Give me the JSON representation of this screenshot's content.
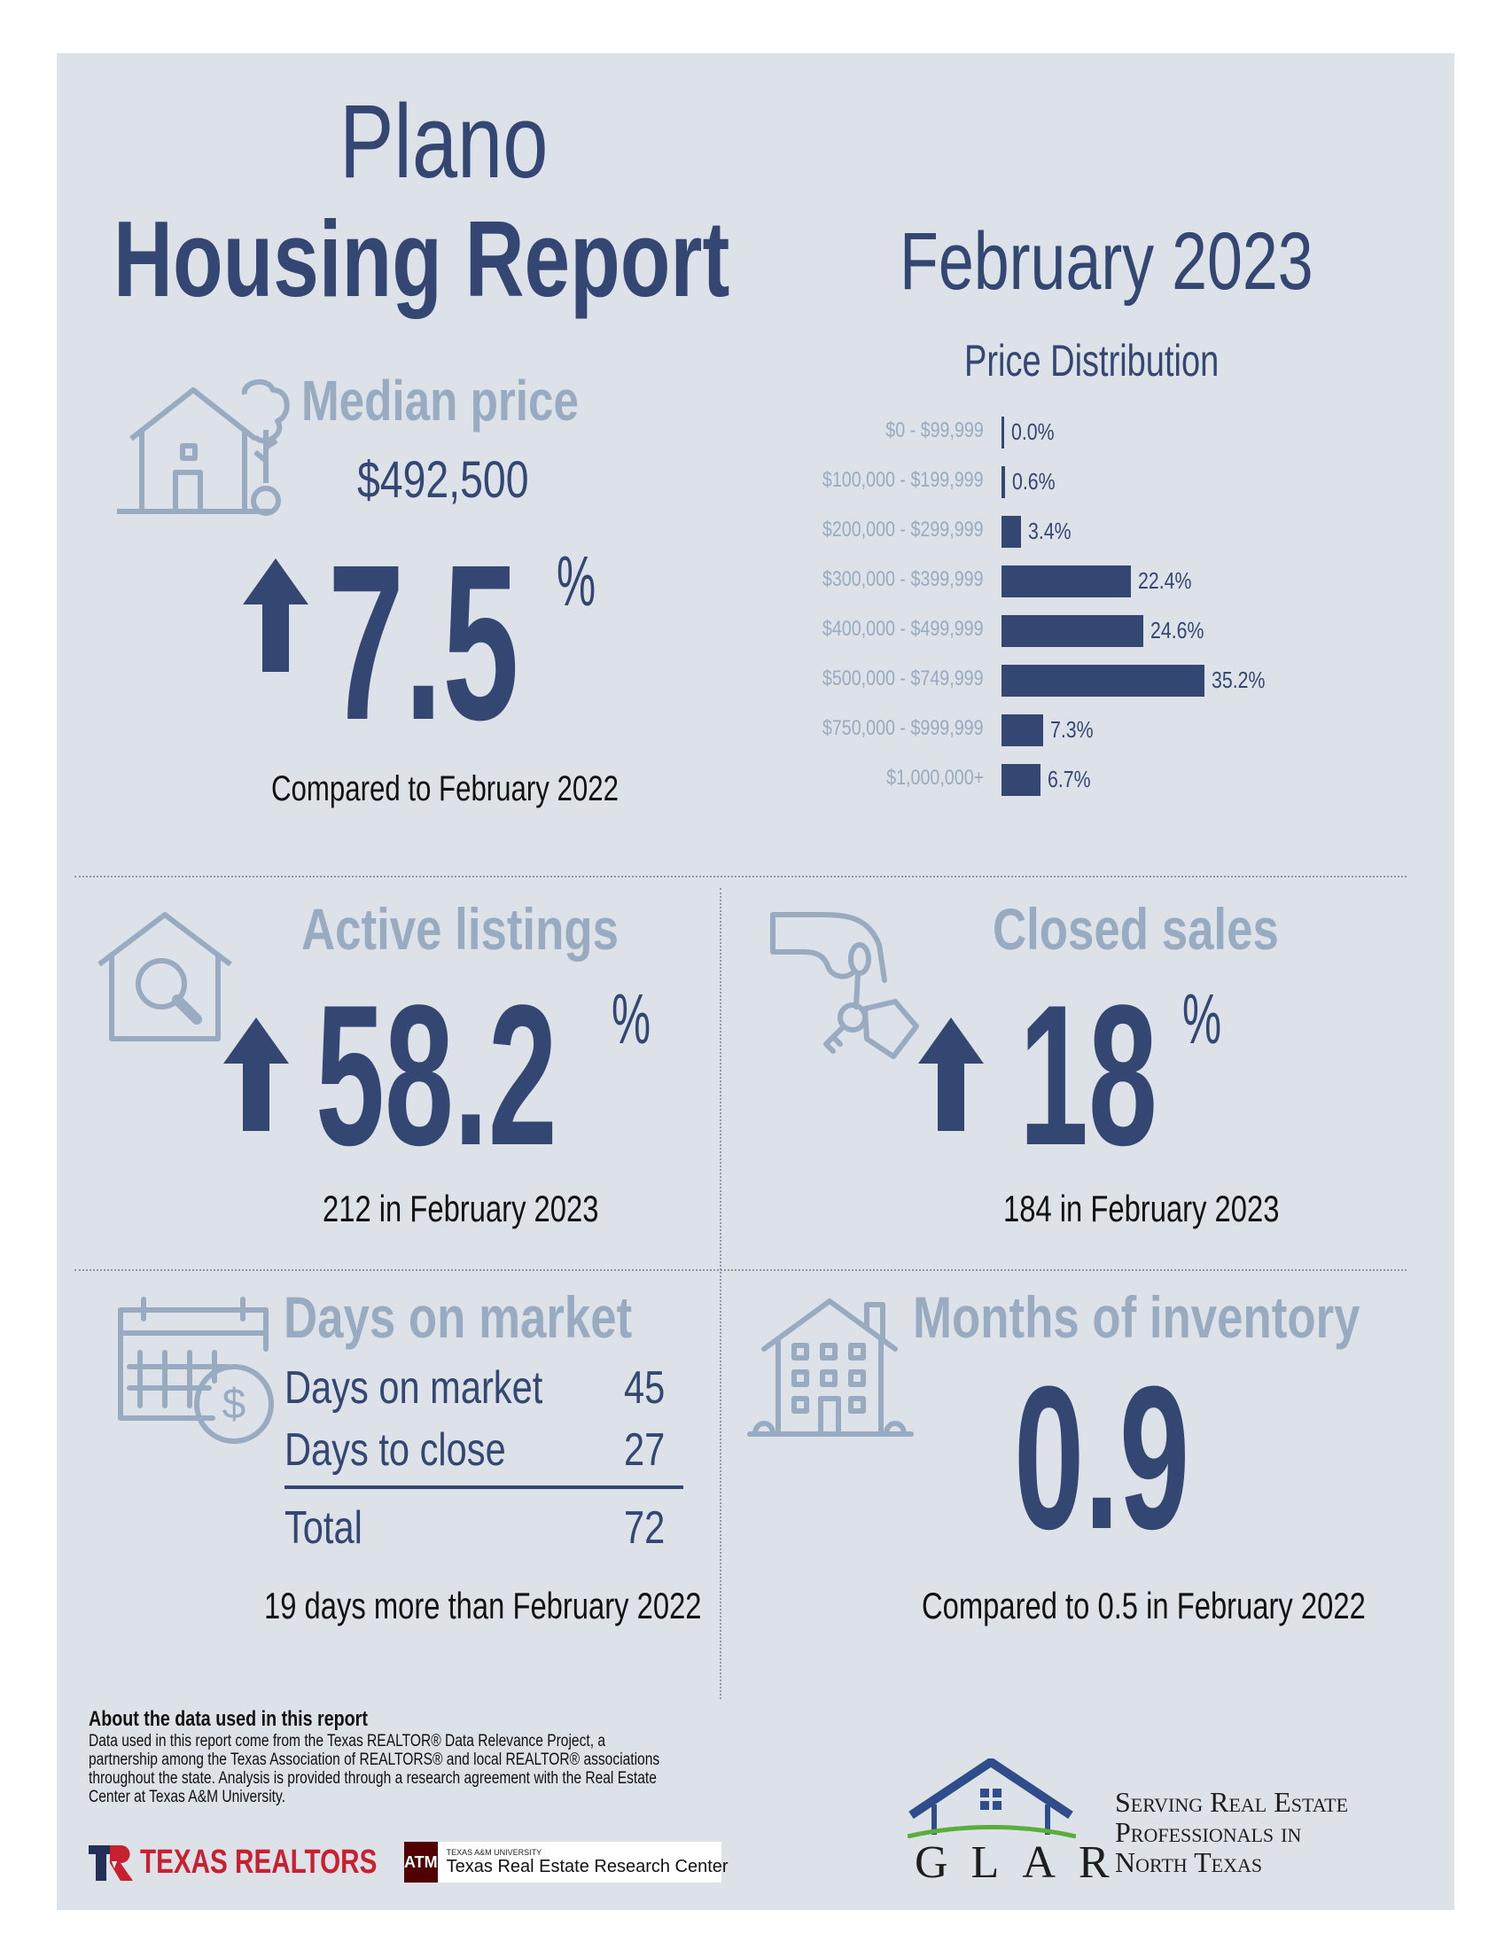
{
  "title": {
    "line1": "Plano",
    "line2": "Housing Report"
  },
  "period": "February 2023",
  "median": {
    "heading": "Median price",
    "price": "$492,500",
    "change": "7.5",
    "pct_symbol": "%",
    "compare": "Compared to February 2022",
    "icon": "house-tree-icon"
  },
  "price_distribution": {
    "heading": "Price Distribution"
  },
  "chart_data": {
    "type": "bar",
    "orientation": "horizontal",
    "title": "Price Distribution",
    "categories": [
      "$0 - $99,999",
      "$100,000 - $199,999",
      "$200,000 - $299,999",
      "$300,000 - $399,999",
      "$400,000 - $499,999",
      "$500,000 - $749,999",
      "$750,000 - $999,999",
      "$1,000,000+"
    ],
    "values": [
      0.0,
      0.6,
      3.4,
      22.4,
      24.6,
      35.2,
      7.3,
      6.7
    ],
    "value_labels": [
      "0.0%",
      "0.6%",
      "3.4%",
      "22.4%",
      "24.6%",
      "35.2%",
      "7.3%",
      "6.7%"
    ],
    "bar_color": "#344773"
  },
  "active": {
    "heading": "Active listings",
    "change": "58.2",
    "pct_symbol": "%",
    "note": "212 in February 2023",
    "icon": "house-magnifier-icon"
  },
  "closed": {
    "heading": "Closed sales",
    "change": "18",
    "pct_symbol": "%",
    "note": "184 in February 2023",
    "icon": "hand-keys-icon"
  },
  "dom": {
    "heading": "Days on market",
    "rows": [
      {
        "label": "Days on market",
        "value": "45"
      },
      {
        "label": "Days to close",
        "value": "27"
      }
    ],
    "total_label": "Total",
    "total_value": "72",
    "note": "19 days more than February 2022",
    "icon": "calendar-dollar-icon"
  },
  "moi": {
    "heading": "Months of inventory",
    "value": "0.9",
    "note": "Compared to 0.5 in February 2022",
    "icon": "apartment-house-icon"
  },
  "about": {
    "heading": "About the data used in this report",
    "body": "Data used in this report come from the Texas REALTOR® Data Relevance Project, a partnership among the Texas Association of REALTORS® and local REALTOR® associations throughout the state. Analysis is provided through a research agreement with the Real Estate Center at Texas A&M University."
  },
  "logos": {
    "texas_realtors": "TEXAS REALTORS",
    "tamu_small": "TEXAS A&M UNIVERSITY",
    "tamu_center": "Texas Real Estate Research Center",
    "glar": "GLAR",
    "glar_tagline": [
      "Serving Real Estate",
      "Professionals in",
      "North Texas"
    ]
  },
  "colors": {
    "navy": "#344773",
    "muted": "#98abc0",
    "panel": "#dde1e8"
  }
}
